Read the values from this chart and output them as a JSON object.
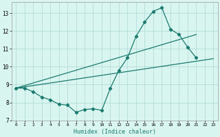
{
  "xlabel": "Humidex (Indice chaleur)",
  "xlim": [
    -0.5,
    23.5
  ],
  "ylim": [
    7,
    13.6
  ],
  "yticks": [
    7,
    8,
    9,
    10,
    11,
    12,
    13
  ],
  "xticks": [
    0,
    1,
    2,
    3,
    4,
    5,
    6,
    7,
    8,
    9,
    10,
    11,
    12,
    13,
    14,
    15,
    16,
    17,
    18,
    19,
    20,
    21,
    22,
    23
  ],
  "bg_color": "#d9f5f0",
  "grid_color": "#b2ddd8",
  "line_color": "#1a7a6e",
  "line1_x": [
    0,
    1,
    2,
    3,
    4,
    5,
    6,
    7,
    8,
    9,
    10,
    11,
    12,
    13,
    14,
    15,
    16,
    17,
    18,
    19,
    20,
    21
  ],
  "line1_y": [
    8.8,
    8.8,
    8.6,
    8.3,
    8.15,
    7.9,
    7.85,
    7.45,
    7.6,
    7.65,
    7.55,
    8.8,
    9.8,
    10.5,
    11.7,
    12.5,
    13.1,
    13.3,
    12.1,
    11.8,
    11.1,
    10.5
  ],
  "line2_x": [
    0,
    23
  ],
  "line2_y": [
    8.8,
    10.45
  ],
  "line3_x": [
    0,
    21
  ],
  "line3_y": [
    8.8,
    11.8
  ]
}
